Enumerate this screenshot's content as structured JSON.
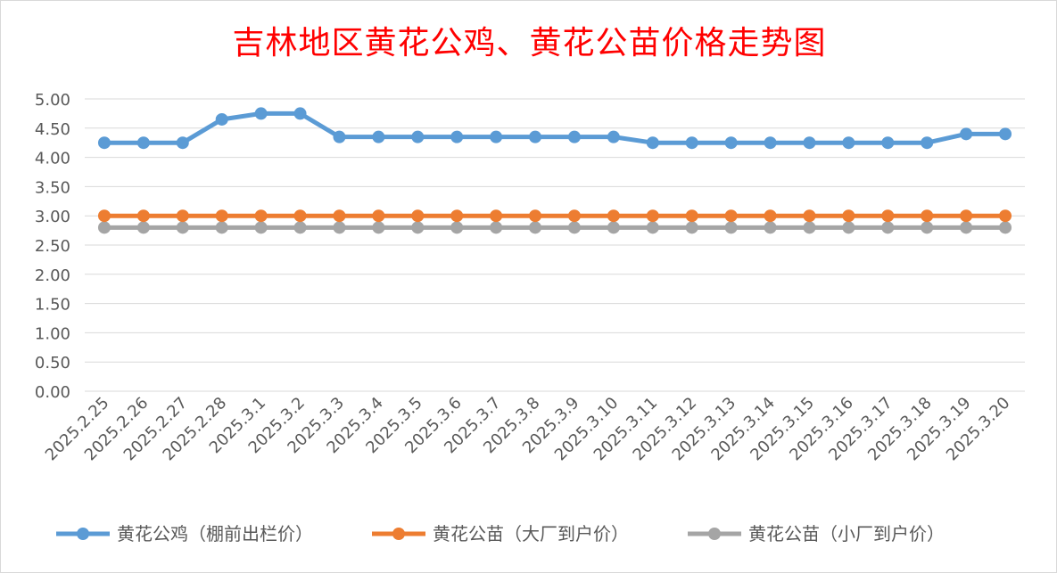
{
  "chart_data": {
    "type": "line",
    "title": "吉林地区黄花公鸡、黄花公苗价格走势图",
    "xlabel": "",
    "ylabel": "",
    "ylim": [
      0,
      5
    ],
    "yticks": [
      "0.00",
      "0.50",
      "1.00",
      "1.50",
      "2.00",
      "2.50",
      "3.00",
      "3.50",
      "4.00",
      "4.50",
      "5.00"
    ],
    "grid": true,
    "legend_position": "bottom",
    "categories": [
      "2025.2.25",
      "2025.2.26",
      "2025.2.27",
      "2025.2.28",
      "2025.3.1",
      "2025.3.2",
      "2025.3.3",
      "2025.3.4",
      "2025.3.5",
      "2025.3.6",
      "2025.3.7",
      "2025.3.8",
      "2025.3.9",
      "2025.3.10",
      "2025.3.11",
      "2025.3.12",
      "2025.3.13",
      "2025.3.14",
      "2025.3.15",
      "2025.3.16",
      "2025.3.17",
      "2025.3.18",
      "2025.3.19",
      "2025.3.20"
    ],
    "series": [
      {
        "name": "黄花公鸡（棚前出栏价）",
        "color": "#5b9bd5",
        "values": [
          4.25,
          4.25,
          4.25,
          4.65,
          4.75,
          4.75,
          4.35,
          4.35,
          4.35,
          4.35,
          4.35,
          4.35,
          4.35,
          4.35,
          4.25,
          4.25,
          4.25,
          4.25,
          4.25,
          4.25,
          4.25,
          4.25,
          4.4,
          4.4
        ]
      },
      {
        "name": "黄花公苗（大厂到户价）",
        "color": "#ed7d31",
        "values": [
          3.0,
          3.0,
          3.0,
          3.0,
          3.0,
          3.0,
          3.0,
          3.0,
          3.0,
          3.0,
          3.0,
          3.0,
          3.0,
          3.0,
          3.0,
          3.0,
          3.0,
          3.0,
          3.0,
          3.0,
          3.0,
          3.0,
          3.0,
          3.0
        ]
      },
      {
        "name": "黄花公苗（小厂到户价）",
        "color": "#a5a5a5",
        "values": [
          2.8,
          2.8,
          2.8,
          2.8,
          2.8,
          2.8,
          2.8,
          2.8,
          2.8,
          2.8,
          2.8,
          2.8,
          2.8,
          2.8,
          2.8,
          2.8,
          2.8,
          2.8,
          2.8,
          2.8,
          2.8,
          2.8,
          2.8,
          2.8
        ]
      }
    ]
  }
}
